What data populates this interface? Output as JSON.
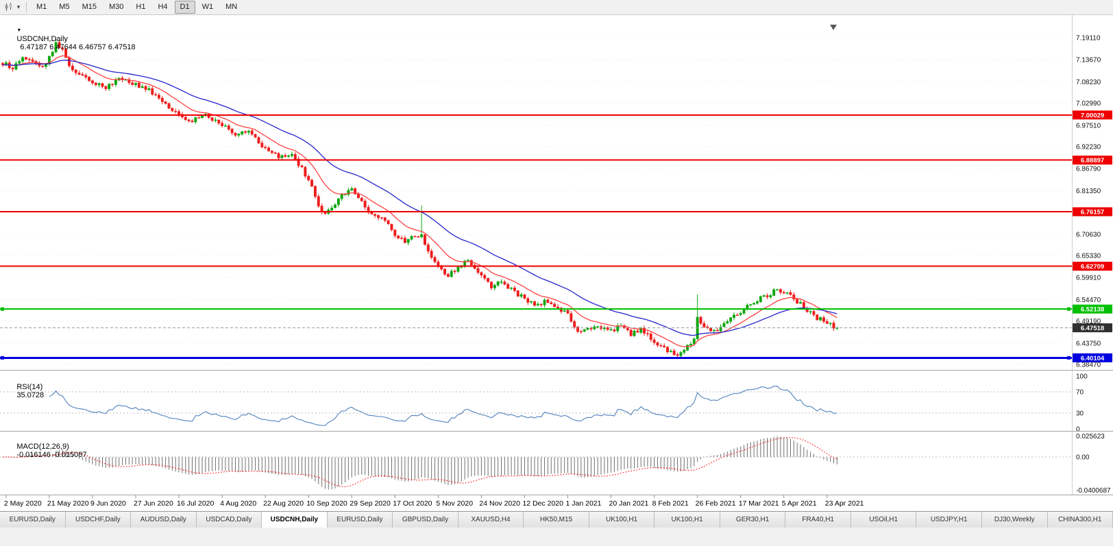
{
  "icons": {
    "chart_menu": "▼",
    "dropdown_caret": "▾"
  },
  "toolbar": {
    "timeframes": [
      "M1",
      "M5",
      "M15",
      "M30",
      "H1",
      "H4",
      "D1",
      "W1",
      "MN"
    ],
    "active_timeframe": "D1"
  },
  "chart": {
    "header_symbol": "USDCNH,Daily",
    "header_ohlc": "6.47187 6.47644 6.46757 6.47518",
    "ohlc": {
      "open": "6.47187",
      "high": "6.47644",
      "low": "6.46757",
      "close": "6.47518"
    }
  },
  "chart_data": {
    "type": "candlestick",
    "symbol": "USDCNH",
    "timeframe": "Daily",
    "candle_count": 252,
    "candles_per_label": 13,
    "x_axis_dates": [
      "2 May 2020",
      "21 May 2020",
      "9 Jun 2020",
      "27 Jun 2020",
      "16 Jul 2020",
      "4 Aug 2020",
      "22 Aug 2020",
      "10 Sep 2020",
      "29 Sep 2020",
      "17 Oct 2020",
      "5 Nov 2020",
      "24 Nov 2020",
      "12 Dec 2020",
      "1 Jan 2021",
      "20 Jan 2021",
      "8 Feb 2021",
      "26 Feb 2021",
      "17 Mar 2021",
      "5 Apr 2021",
      "23 Apr 2021"
    ],
    "price_axis_ticks": [
      "7.19110",
      "7.13670",
      "7.08230",
      "7.02990",
      "6.97510",
      "6.92230",
      "6.86790",
      "6.81350",
      "6.70630",
      "6.65330",
      "6.59910",
      "6.54470",
      "6.49190",
      "6.43750",
      "6.38470"
    ],
    "horizontal_levels": [
      {
        "price": "7.00029",
        "color": "#ee0000",
        "width": 2,
        "handles": false
      },
      {
        "price": "6.88897",
        "color": "#ee0000",
        "width": 2,
        "handles": false
      },
      {
        "price": "6.76157",
        "color": "#ee0000",
        "width": 2,
        "handles": false
      },
      {
        "price": "6.62709",
        "color": "#ee0000",
        "width": 2,
        "handles": false
      },
      {
        "price": "6.52138",
        "color": "#00c000",
        "width": 2,
        "handles": true
      },
      {
        "price": "6.40104",
        "color": "#0000e0",
        "width": 3,
        "handles": true
      }
    ],
    "current_price": {
      "value": "6.47518",
      "badge_color": "#303030"
    },
    "price_path_anchors": [
      [
        0,
        7.128
      ],
      [
        3,
        7.118
      ],
      [
        6,
        7.142
      ],
      [
        9,
        7.135
      ],
      [
        12,
        7.12
      ],
      [
        14,
        7.14
      ],
      [
        16,
        7.175
      ],
      [
        18,
        7.16
      ],
      [
        20,
        7.125
      ],
      [
        23,
        7.1
      ],
      [
        27,
        7.078
      ],
      [
        31,
        7.07
      ],
      [
        35,
        7.088
      ],
      [
        40,
        7.075
      ],
      [
        44,
        7.062
      ],
      [
        48,
        7.03
      ],
      [
        53,
        6.998
      ],
      [
        57,
        6.988
      ],
      [
        61,
        7.004
      ],
      [
        66,
        6.974
      ],
      [
        70,
        6.952
      ],
      [
        74,
        6.958
      ],
      [
        79,
        6.918
      ],
      [
        83,
        6.898
      ],
      [
        87,
        6.902
      ],
      [
        90,
        6.868
      ],
      [
        92,
        6.84
      ],
      [
        94,
        6.8
      ],
      [
        96,
        6.758
      ],
      [
        99,
        6.77
      ],
      [
        102,
        6.8
      ],
      [
        105,
        6.818
      ],
      [
        108,
        6.785
      ],
      [
        111,
        6.755
      ],
      [
        114,
        6.748
      ],
      [
        118,
        6.705
      ],
      [
        121,
        6.688
      ],
      [
        124,
        6.7
      ],
      [
        126,
        6.7
      ],
      [
        128,
        6.662
      ],
      [
        131,
        6.632
      ],
      [
        134,
        6.602
      ],
      [
        137,
        6.625
      ],
      [
        140,
        6.64
      ],
      [
        144,
        6.602
      ],
      [
        147,
        6.578
      ],
      [
        150,
        6.59
      ],
      [
        154,
        6.565
      ],
      [
        157,
        6.545
      ],
      [
        160,
        6.53
      ],
      [
        163,
        6.54
      ],
      [
        166,
        6.527
      ],
      [
        170,
        6.51
      ],
      [
        173,
        6.462
      ],
      [
        176,
        6.47
      ],
      [
        179,
        6.478
      ],
      [
        183,
        6.468
      ],
      [
        186,
        6.482
      ],
      [
        189,
        6.46
      ],
      [
        192,
        6.47
      ],
      [
        196,
        6.44
      ],
      [
        199,
        6.422
      ],
      [
        203,
        6.406
      ],
      [
        206,
        6.43
      ],
      [
        208,
        6.45
      ],
      [
        209,
        6.498
      ],
      [
        211,
        6.474
      ],
      [
        214,
        6.466
      ],
      [
        217,
        6.484
      ],
      [
        220,
        6.502
      ],
      [
        222,
        6.512
      ],
      [
        225,
        6.534
      ],
      [
        228,
        6.55
      ],
      [
        231,
        6.558
      ],
      [
        233,
        6.57
      ],
      [
        235,
        6.562
      ],
      [
        238,
        6.548
      ],
      [
        241,
        6.526
      ],
      [
        244,
        6.504
      ],
      [
        247,
        6.492
      ],
      [
        249,
        6.484
      ],
      [
        251,
        6.47518
      ]
    ],
    "spikes": [
      {
        "i": 16,
        "high": 7.1911
      },
      {
        "i": 126,
        "high": 6.777
      },
      {
        "i": 203,
        "low": 6.401
      },
      {
        "i": 209,
        "high": 6.557
      }
    ],
    "colors": {
      "up": "#0da50d",
      "down": "#ee1c1c",
      "ma_fast": "#ff4040",
      "ma_slow": "#2323cd",
      "grid": "#ebebeb"
    },
    "moving_averages": [
      {
        "name": "fast",
        "period": 13,
        "color_key": "ma_fast"
      },
      {
        "name": "slow",
        "period": 34,
        "color_key": "ma_slow"
      }
    ],
    "indicators": {
      "rsi": {
        "label": "RSI(14)",
        "value": "35.0728",
        "period": 14,
        "axis_ticks": [
          "100",
          "70",
          "30",
          "0"
        ],
        "level_lines": [
          70,
          30
        ],
        "color": "#4f81bd"
      },
      "macd": {
        "label": "MACD(12,26,9)",
        "values": "-0.016146 -0.015087",
        "fast": 12,
        "slow": 26,
        "signal": 9,
        "axis_ticks": [
          "0.025623",
          "0.00",
          "-0.0400687"
        ],
        "axis_max": 0.025623,
        "axis_min": -0.0400687,
        "histogram_color": "#6e6e6e",
        "signal_color": "#ff1010"
      }
    }
  },
  "tabs": {
    "items": [
      "EURUSD,Daily",
      "USDCHF,Daily",
      "AUDUSD,Daily",
      "USDCAD,Daily",
      "USDCNH,Daily",
      "EURUSD,Daily",
      "GBPUSD,Daily",
      "XAUUSD,H4",
      "HK50,M15",
      "UK100,H1",
      "UK100,H1",
      "GER30,H1",
      "FRA40,H1",
      "USOil,H1",
      "USDJPY,H1",
      "DJ30,Weekly",
      "CHINA300,H1"
    ],
    "active_index": 4
  }
}
